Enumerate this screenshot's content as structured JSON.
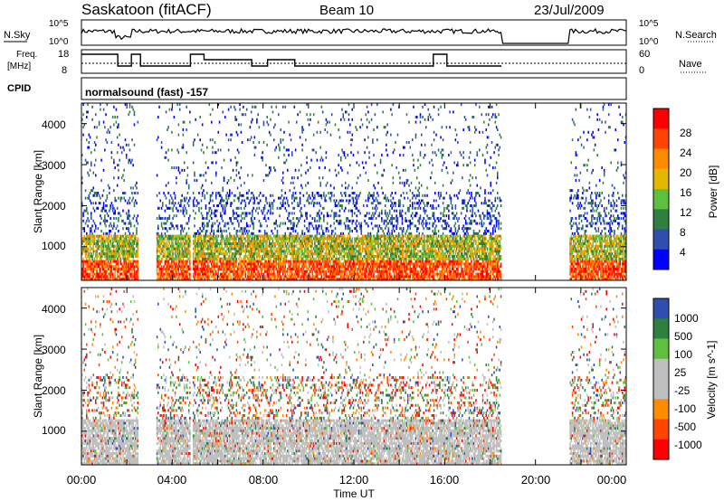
{
  "header": {
    "station": "Saskatoon (fitACF)",
    "beam": "Beam 10",
    "date": "23/Jul/2009"
  },
  "time_axis": {
    "label": "Time UT",
    "ticks": [
      "00:00",
      "04:00",
      "08:00",
      "12:00",
      "16:00",
      "20:00",
      "00:00"
    ],
    "range_hours": [
      0,
      24
    ]
  },
  "strip_panels": {
    "nsky_label": "N.Sky",
    "nsky_ticks": [
      "10^5",
      "10^0"
    ],
    "nsearch_label": "N.Search",
    "freq_label_1": "Freq.",
    "freq_label_2": "[MHz]",
    "freq_ticks": [
      "18",
      "8"
    ],
    "nave_label": "Nave",
    "nave_ticks": [
      "60",
      "0"
    ],
    "cpid_label": "CPID",
    "cpid_text": "normalsound (fast) -157"
  },
  "colors": {
    "power_scale": [
      "#0000ff",
      "#2f4fb0",
      "#2f7f3f",
      "#5fbf3f",
      "#e5b800",
      "#ff8c00",
      "#ff4500",
      "#ff0000"
    ],
    "velocity_scale": [
      "#2f4fb0",
      "#2f7f3f",
      "#5fbf3f",
      "#bfbfbf",
      "#bfbfbf",
      "#ff8c00",
      "#ff4500",
      "#ff0000"
    ]
  },
  "chart_data": [
    {
      "type": "heatmap",
      "name": "power-panel",
      "ylabel": "Slant Range [km]",
      "yticks": [
        "4000",
        "3000",
        "2000",
        "1000"
      ],
      "ylim": [
        180,
        4500
      ],
      "colorbar_label": "Power [dB]",
      "colorbar_ticks": [
        "28",
        "24",
        "20",
        "16",
        "12",
        "8",
        "4"
      ],
      "data_gaps_hours": [
        [
          2.5,
          3.3
        ],
        [
          4.8,
          4.9
        ],
        [
          18.5,
          21.5
        ]
      ]
    },
    {
      "type": "heatmap",
      "name": "velocity-panel",
      "ylabel": "Slant Range [km]",
      "yticks": [
        "4000",
        "3000",
        "2000",
        "1000"
      ],
      "ylim": [
        180,
        4500
      ],
      "colorbar_label": "Velocity [m s^-1]",
      "colorbar_ticks": [
        "1000",
        "500",
        "100",
        "25",
        "-25",
        "-100",
        "-500",
        "-1000"
      ],
      "data_gaps_hours": [
        [
          2.5,
          3.3
        ],
        [
          4.8,
          4.9
        ],
        [
          18.5,
          21.5
        ]
      ]
    }
  ]
}
